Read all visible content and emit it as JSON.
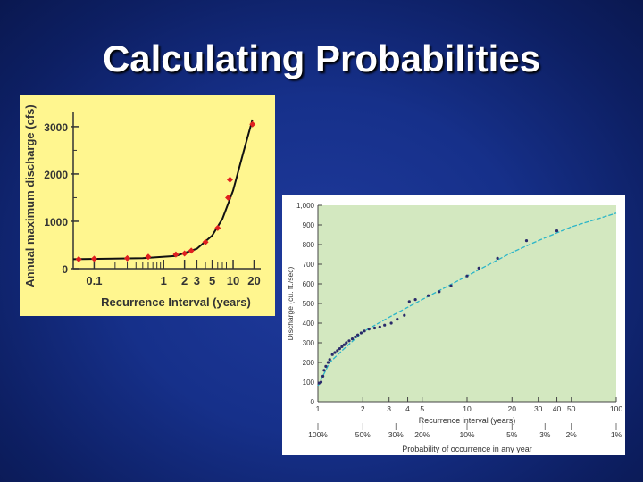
{
  "slide": {
    "title": "Calculating Probabilities",
    "background": "#16308a"
  },
  "chart_data": [
    {
      "type": "scatter",
      "xlabel": "Recurrence Interval (years)",
      "ylabel": "Annual maximum discharge (cfs)",
      "x_scale": "log",
      "xlim": [
        0.05,
        25
      ],
      "ylim": [
        0,
        3300
      ],
      "x_tick_labels": [
        "0.1",
        "1",
        "2",
        "3",
        "5",
        "10",
        "20"
      ],
      "x_tick_values": [
        0.1,
        1,
        2,
        3,
        5,
        10,
        20
      ],
      "y_ticks": [
        0,
        1000,
        2000,
        3000
      ],
      "points": [
        [
          0.06,
          200
        ],
        [
          0.1,
          210
        ],
        [
          0.3,
          220
        ],
        [
          0.6,
          250
        ],
        [
          1.5,
          300
        ],
        [
          2.0,
          320
        ],
        [
          2.5,
          380
        ],
        [
          4.0,
          560
        ],
        [
          6.0,
          860
        ],
        [
          8.5,
          1500
        ],
        [
          9.0,
          1880
        ],
        [
          19.0,
          3050
        ]
      ],
      "curve": [
        [
          0.05,
          200
        ],
        [
          0.5,
          220
        ],
        [
          1.5,
          270
        ],
        [
          3.0,
          420
        ],
        [
          5.0,
          700
        ],
        [
          7.0,
          1050
        ],
        [
          10.0,
          1650
        ],
        [
          14.0,
          2450
        ],
        [
          19.0,
          3150
        ]
      ],
      "background": "#fff68f",
      "point_color": "#e02020"
    },
    {
      "type": "scatter",
      "xlabel": "Recurrence interval (years)",
      "ylabel": "Discharge (cu. ft./sec)",
      "x2label": "Probability of occurrence in any year",
      "x_scale": "log",
      "xlim": [
        1,
        100
      ],
      "ylim": [
        0,
        1000
      ],
      "x_tick_labels": [
        "1",
        "2",
        "3",
        "4",
        "5",
        "10",
        "20",
        "30",
        "40",
        "50",
        "100"
      ],
      "x_tick_values": [
        1,
        2,
        3,
        4,
        5,
        10,
        20,
        30,
        40,
        50,
        100
      ],
      "y_tick_labels": [
        "0",
        "100",
        "200",
        "300",
        "400",
        "500",
        "600",
        "700",
        "800",
        "900",
        "1,000"
      ],
      "y_ticks": [
        0,
        100,
        200,
        300,
        400,
        500,
        600,
        700,
        800,
        900,
        1000
      ],
      "prob_labels": [
        "100%",
        "50%",
        "30%",
        "20%",
        "10%",
        "5%",
        "3%",
        "2%",
        "1%"
      ],
      "prob_positions": [
        1,
        2,
        3.33,
        5,
        10,
        20,
        33.3,
        50,
        100
      ],
      "points": [
        [
          1.02,
          95
        ],
        [
          1.05,
          100
        ],
        [
          1.08,
          130
        ],
        [
          1.1,
          160
        ],
        [
          1.13,
          180
        ],
        [
          1.17,
          200
        ],
        [
          1.2,
          215
        ],
        [
          1.25,
          240
        ],
        [
          1.3,
          250
        ],
        [
          1.35,
          260
        ],
        [
          1.4,
          270
        ],
        [
          1.45,
          280
        ],
        [
          1.5,
          290
        ],
        [
          1.55,
          300
        ],
        [
          1.62,
          310
        ],
        [
          1.7,
          320
        ],
        [
          1.78,
          330
        ],
        [
          1.85,
          340
        ],
        [
          1.95,
          350
        ],
        [
          2.05,
          360
        ],
        [
          2.2,
          370
        ],
        [
          2.4,
          375
        ],
        [
          2.6,
          380
        ],
        [
          2.8,
          390
        ],
        [
          3.1,
          400
        ],
        [
          3.4,
          420
        ],
        [
          3.8,
          440
        ],
        [
          4.1,
          510
        ],
        [
          4.5,
          520
        ],
        [
          5.5,
          540
        ],
        [
          6.5,
          560
        ],
        [
          7.8,
          590
        ],
        [
          10.0,
          640
        ],
        [
          12.0,
          680
        ],
        [
          16.0,
          730
        ],
        [
          25.0,
          820
        ],
        [
          40.0,
          870
        ]
      ],
      "trend": [
        [
          1.0,
          80
        ],
        [
          1.2,
          200
        ],
        [
          1.5,
          270
        ],
        [
          2.0,
          355
        ],
        [
          3.0,
          430
        ],
        [
          5.0,
          520
        ],
        [
          10.0,
          640
        ],
        [
          20.0,
          760
        ],
        [
          30.0,
          820
        ],
        [
          50.0,
          890
        ],
        [
          100.0,
          960
        ]
      ],
      "background": "#d3e8c0",
      "trend_color": "#2bb5c8",
      "point_color": "#2a2a6a"
    }
  ]
}
